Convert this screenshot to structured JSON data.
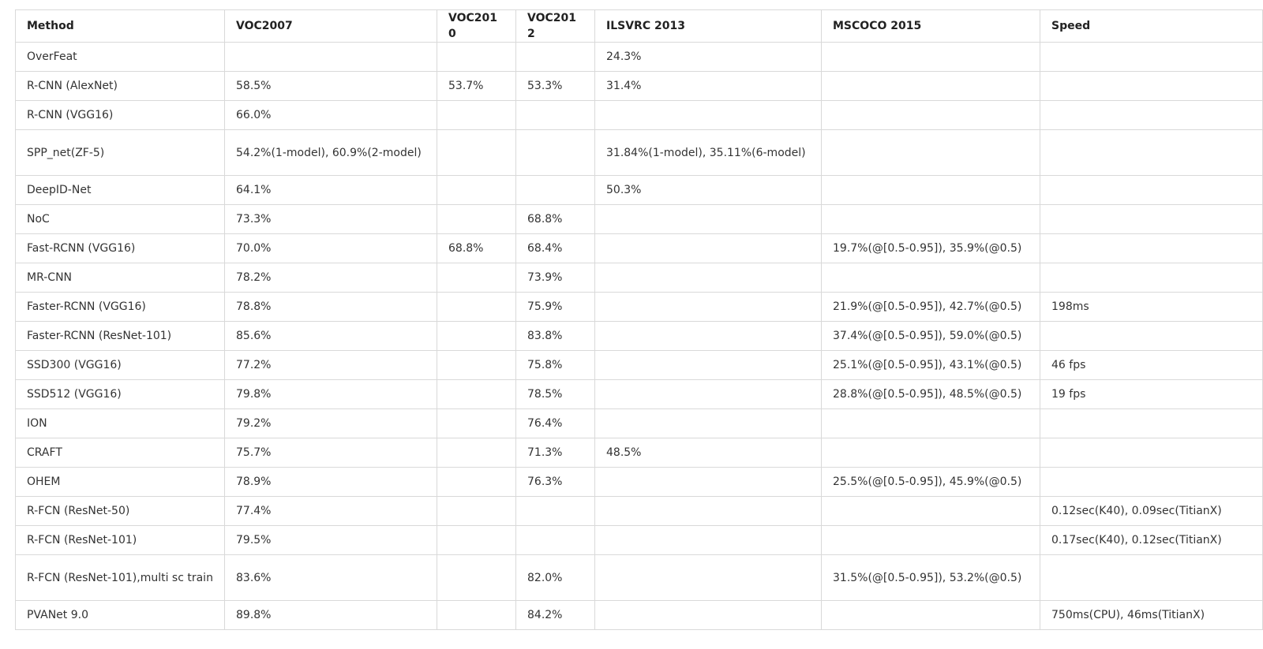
{
  "table": {
    "headers": [
      "Method",
      "VOC2007",
      "VOC2010",
      "VOC2012",
      "ILSVRC 2013",
      "MSCOCO 2015",
      "Speed"
    ],
    "rows": [
      [
        "OverFeat",
        "",
        "",
        "",
        "24.3%",
        "",
        ""
      ],
      [
        "R-CNN (AlexNet)",
        "58.5%",
        "53.7%",
        "53.3%",
        "31.4%",
        "",
        ""
      ],
      [
        "R-CNN (VGG16)",
        "66.0%",
        "",
        "",
        "",
        "",
        ""
      ],
      [
        "SPP_net(ZF-5)",
        "54.2%(1-model), 60.9%(2-model)",
        "",
        "",
        "31.84%(1-model), 35.11%(6-model)",
        "",
        ""
      ],
      [
        "DeepID-Net",
        "64.1%",
        "",
        "",
        "50.3%",
        "",
        ""
      ],
      [
        "NoC",
        "73.3%",
        "",
        "68.8%",
        "",
        "",
        ""
      ],
      [
        "Fast-RCNN (VGG16)",
        "70.0%",
        "68.8%",
        "68.4%",
        "",
        "19.7%(@[0.5-0.95]), 35.9%(@0.5)",
        ""
      ],
      [
        "MR-CNN",
        "78.2%",
        "",
        "73.9%",
        "",
        "",
        ""
      ],
      [
        "Faster-RCNN (VGG16)",
        "78.8%",
        "",
        "75.9%",
        "",
        "21.9%(@[0.5-0.95]), 42.7%(@0.5)",
        "198ms"
      ],
      [
        "Faster-RCNN (ResNet-101)",
        "85.6%",
        "",
        "83.8%",
        "",
        "37.4%(@[0.5-0.95]), 59.0%(@0.5)",
        ""
      ],
      [
        "SSD300 (VGG16)",
        "77.2%",
        "",
        "75.8%",
        "",
        "25.1%(@[0.5-0.95]), 43.1%(@0.5)",
        "46 fps"
      ],
      [
        "SSD512 (VGG16)",
        "79.8%",
        "",
        "78.5%",
        "",
        "28.8%(@[0.5-0.95]), 48.5%(@0.5)",
        "19 fps"
      ],
      [
        "ION",
        "79.2%",
        "",
        "76.4%",
        "",
        "",
        ""
      ],
      [
        "CRAFT",
        "75.7%",
        "",
        "71.3%",
        "48.5%",
        "",
        ""
      ],
      [
        "OHEM",
        "78.9%",
        "",
        "76.3%",
        "",
        "25.5%(@[0.5-0.95]), 45.9%(@0.5)",
        ""
      ],
      [
        "R-FCN (ResNet-50)",
        "77.4%",
        "",
        "",
        "",
        "",
        "0.12sec(K40), 0.09sec(TitianX)"
      ],
      [
        "R-FCN (ResNet-101)",
        "79.5%",
        "",
        "",
        "",
        "",
        "0.17sec(K40), 0.12sec(TitianX)"
      ],
      [
        "R-FCN (ResNet-101),multi sc train",
        "83.6%",
        "",
        "82.0%",
        "",
        "31.5%(@[0.5-0.95]), 53.2%(@0.5)",
        ""
      ],
      [
        "PVANet 9.0",
        "89.8%",
        "",
        "84.2%",
        "",
        "",
        "750ms(CPU), 46ms(TitianX)"
      ]
    ]
  }
}
